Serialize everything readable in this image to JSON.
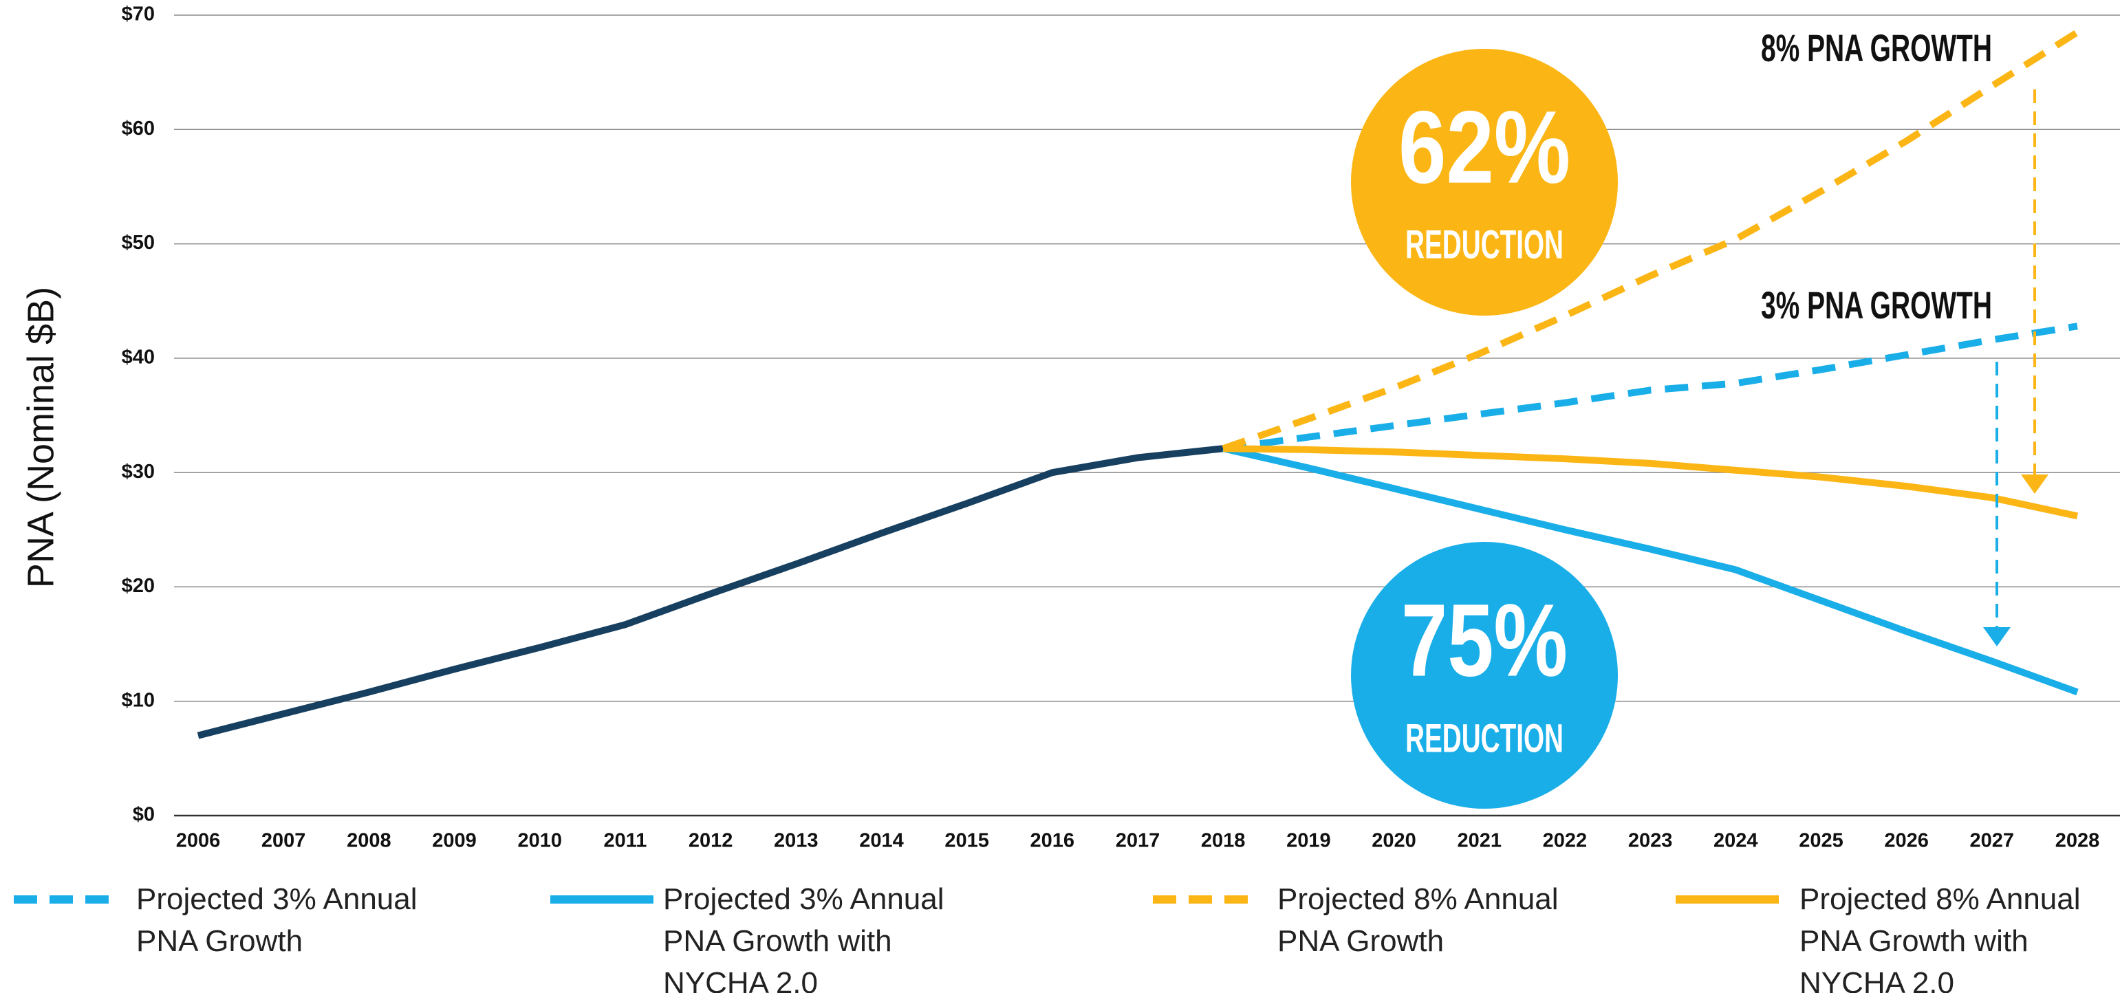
{
  "chart_data": {
    "type": "line",
    "y_label": "PNA (Nominal $B)",
    "categories": [
      "2006",
      "2007",
      "2008",
      "2009",
      "2010",
      "2011",
      "2012",
      "2013",
      "2014",
      "2015",
      "2016",
      "2017",
      "2018",
      "2019",
      "2020",
      "2021",
      "2022",
      "2023",
      "2024",
      "2025",
      "2026",
      "2027",
      "2028"
    ],
    "ylim": [
      0,
      70
    ],
    "yticks": [
      {
        "value": 0,
        "label": "$0"
      },
      {
        "value": 10,
        "label": "$10"
      },
      {
        "value": 20,
        "label": "$20"
      },
      {
        "value": 30,
        "label": "$30"
      },
      {
        "value": 40,
        "label": "$40"
      },
      {
        "value": 50,
        "label": "$50"
      },
      {
        "value": 60,
        "label": "$60"
      },
      {
        "value": 70,
        "label": "$70"
      }
    ],
    "grid": true,
    "series": [
      {
        "color": "#173f5f",
        "dashed": false,
        "values": [
          7.0,
          8.9,
          10.8,
          12.8,
          14.7,
          16.7,
          19.4,
          22.0,
          24.7,
          27.3,
          30.0,
          31.3,
          32.1,
          null,
          null,
          null,
          null,
          null,
          null,
          null,
          null,
          null,
          null
        ]
      },
      {
        "name": "Projected 3% Annual PNA Growth",
        "color": "#1aaee8",
        "dashed": true,
        "values": [
          null,
          null,
          null,
          null,
          null,
          null,
          null,
          null,
          null,
          null,
          null,
          null,
          32.1,
          33.1,
          34.1,
          35.1,
          36.1,
          37.2,
          37.8,
          39.0,
          40.3,
          41.6,
          42.8
        ]
      },
      {
        "name": "Projected 3% Annual PNA Growth with NYCHA 2.0",
        "color": "#1aaee8",
        "dashed": false,
        "values": [
          null,
          null,
          null,
          null,
          null,
          null,
          null,
          null,
          null,
          null,
          null,
          null,
          32.1,
          30.4,
          28.6,
          26.8,
          25.0,
          23.3,
          21.5,
          18.8,
          16.1,
          13.5,
          10.8
        ]
      },
      {
        "name": "Projected 8% Annual PNA Growth",
        "color": "#fbb616",
        "dashed": true,
        "values": [
          null,
          null,
          null,
          null,
          null,
          null,
          null,
          null,
          null,
          null,
          null,
          null,
          32.1,
          34.7,
          37.4,
          40.4,
          43.7,
          47.2,
          50.4,
          54.6,
          59.0,
          63.8,
          68.5
        ]
      },
      {
        "name": "Projected 8% Annual PNA Growth with NYCHA 2.0",
        "color": "#fbb616",
        "dashed": false,
        "values": [
          null,
          null,
          null,
          null,
          null,
          null,
          null,
          null,
          null,
          null,
          null,
          null,
          32.1,
          32.0,
          31.8,
          31.5,
          31.2,
          30.8,
          30.2,
          29.6,
          28.8,
          27.8,
          26.2
        ]
      }
    ],
    "annotations": [
      "62%",
      "REDUCTION",
      "75%",
      "REDUCTION",
      "8% PNA GROWTH",
      "3% PNA GROWTH"
    ]
  }
}
